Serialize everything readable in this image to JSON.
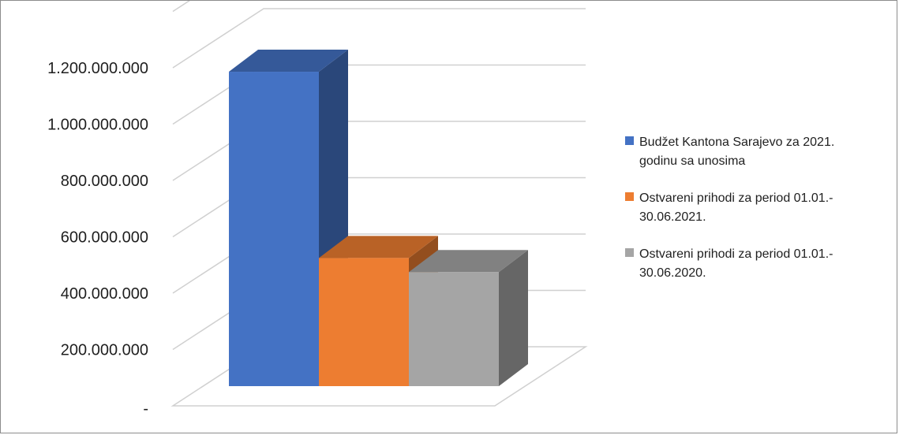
{
  "chart_data": {
    "type": "bar",
    "categories": [
      "Budžet Kantona Sarajevo za 2021. godinu sa unosima",
      "Ostvareni prihodi za period 01.01.-30.06.2021.",
      "Ostvareni prihodi za period 01.01.-30.06.2020."
    ],
    "values": [
      1116000000,
      455000000,
      405000000
    ],
    "colors": [
      "#4472c4",
      "#ed7d31",
      "#a5a5a5"
    ],
    "ylim": [
      0,
      1400000000
    ],
    "yticks": [
      0,
      200000000,
      400000000,
      600000000,
      800000000,
      1000000000,
      1200000000
    ],
    "ytick_labels": [
      "-",
      "200.000.000",
      "400.000.000",
      "600.000.000",
      "800.000.000",
      "1.000.000.000",
      "1.200.000.000"
    ],
    "grid": true,
    "legend_position": "right",
    "legend": [
      {
        "lines": [
          "Budžet Kantona Sarajevo za 2021.",
          "godinu sa unosima"
        ]
      },
      {
        "lines": [
          "Ostvareni prihodi za period 01.01.-",
          "30.06.2021."
        ]
      },
      {
        "lines": [
          "Ostvareni prihodi za period 01.01.-",
          "30.06.2020."
        ]
      }
    ]
  }
}
